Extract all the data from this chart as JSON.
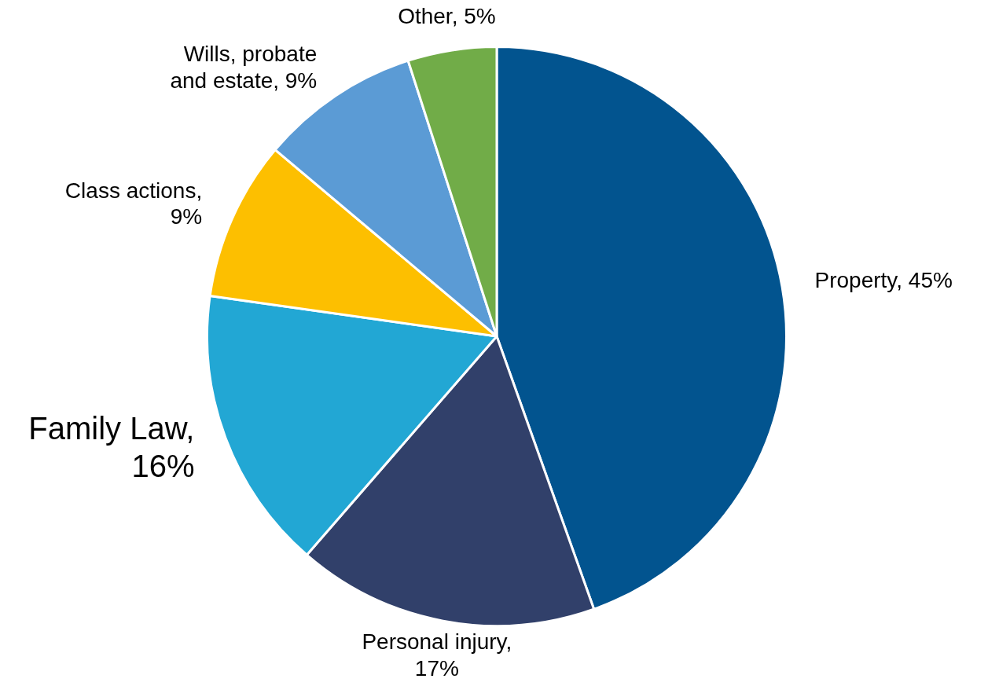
{
  "chart_data": {
    "type": "pie",
    "categories": [
      "Property",
      "Personal injury",
      "Family Law",
      "Class actions",
      "Wills, probate and estate",
      "Other"
    ],
    "values": [
      45,
      17,
      16,
      9,
      9,
      5
    ],
    "colors": [
      "#02548f",
      "#31406a",
      "#22a7d4",
      "#fdbf00",
      "#5b9bd5",
      "#71ac48"
    ],
    "value_labels": [
      ", 45%",
      ", 17%",
      ", 16%",
      ", 9%",
      ", 9%",
      ", 5%"
    ],
    "legend": false
  }
}
